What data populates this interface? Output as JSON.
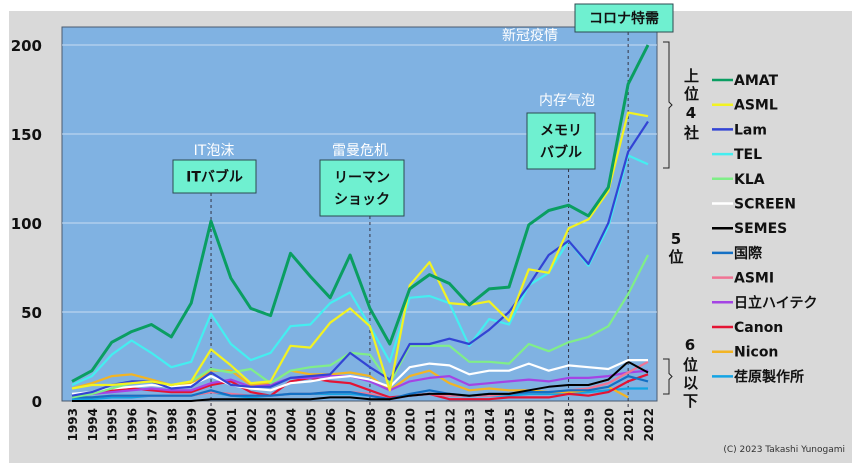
{
  "chart_data": {
    "type": "line",
    "title": "",
    "xlabel": "",
    "ylabel": "",
    "ylim": [
      0,
      200
    ],
    "yticks": [
      "0",
      "50",
      "100",
      "150",
      "200"
    ],
    "grid": true,
    "legend_placement": "right",
    "x": [
      "1993",
      "1994",
      "1995",
      "1996",
      "1997",
      "1998",
      "1999",
      "2000",
      "2001",
      "2002",
      "2003",
      "2004",
      "2005",
      "2006",
      "2007",
      "2008",
      "2009",
      "2010",
      "2011",
      "2012",
      "2013",
      "2014",
      "2015",
      "2016",
      "2017",
      "2018",
      "2019",
      "2020",
      "2021",
      "2022"
    ],
    "series": [
      {
        "name": "AMAT",
        "color": "#0a9e62",
        "width": 3,
        "values": [
          11,
          17,
          33,
          39,
          43,
          36,
          55,
          101,
          69,
          52,
          48,
          83,
          70,
          58,
          82,
          52,
          32,
          63,
          71,
          66,
          54,
          63,
          64,
          99,
          107,
          110,
          104,
          120,
          178,
          200
        ]
      },
      {
        "name": "ASML",
        "color": "#f2f222",
        "width": 2.2,
        "values": [
          7,
          9,
          9,
          10,
          11,
          9,
          11,
          29,
          20,
          10,
          11,
          31,
          30,
          44,
          52,
          42,
          6,
          65,
          78,
          55,
          54,
          56,
          45,
          74,
          72,
          97,
          102,
          118,
          162,
          160
        ]
      },
      {
        "name": "Lam",
        "color": "#3344d4",
        "width": 2.2,
        "values": [
          3,
          5,
          9,
          11,
          11,
          7,
          8,
          16,
          9,
          8,
          8,
          13,
          14,
          15,
          27,
          19,
          12,
          32,
          32,
          35,
          32,
          40,
          50,
          65,
          82,
          90,
          77,
          100,
          140,
          157
        ]
      },
      {
        "name": "TEL",
        "color": "#44eef0",
        "width": 2.2,
        "values": [
          9,
          14,
          26,
          34,
          27,
          19,
          22,
          49,
          32,
          23,
          27,
          42,
          43,
          55,
          61,
          42,
          22,
          58,
          59,
          55,
          31,
          46,
          43,
          65,
          72,
          90,
          76,
          98,
          138,
          133
        ]
      },
      {
        "name": "KLA",
        "color": "#80ee88",
        "width": 2.2,
        "values": [
          2,
          4,
          7,
          10,
          11,
          9,
          11,
          18,
          16,
          18,
          10,
          17,
          19,
          20,
          27,
          26,
          10,
          31,
          31,
          31,
          22,
          22,
          21,
          32,
          28,
          33,
          36,
          42,
          60,
          82
        ]
      },
      {
        "name": "SCREEN",
        "color": "#ffffff",
        "width": 2.2,
        "values": [
          4,
          5,
          7,
          8,
          9,
          8,
          9,
          14,
          9,
          7,
          6,
          10,
          11,
          13,
          14,
          12,
          8,
          19,
          21,
          20,
          15,
          17,
          17,
          21,
          17,
          20,
          19,
          18,
          23,
          23
        ]
      },
      {
        "name": "SEMES",
        "color": "#000000",
        "width": 2,
        "values": [
          0,
          0,
          0,
          0,
          0,
          0,
          0,
          1,
          1,
          1,
          1,
          1,
          1,
          2,
          2,
          1,
          1,
          3,
          4,
          4,
          3,
          4,
          4,
          6,
          8,
          9,
          9,
          12,
          22,
          16
        ]
      },
      {
        "name": "国際",
        "color": "#1470c4",
        "width": 2.2,
        "values": [
          2,
          2,
          3,
          3,
          3,
          3,
          3,
          6,
          3,
          3,
          3,
          4,
          4,
          5,
          5,
          3,
          1,
          4,
          6,
          4,
          3,
          4,
          4,
          5,
          5,
          6,
          6,
          8,
          14,
          11
        ]
      },
      {
        "name": "ASMI",
        "color": "#f07494",
        "width": 2.2,
        "values": [
          2,
          2,
          3,
          3,
          3,
          3,
          3,
          5,
          4,
          3,
          3,
          4,
          4,
          5,
          5,
          4,
          1,
          3,
          4,
          3,
          3,
          3,
          4,
          5,
          5,
          6,
          7,
          10,
          16,
          22
        ]
      },
      {
        "name": "日立ハイテク",
        "color": "#a444e4",
        "width": 2.2,
        "values": [
          3,
          4,
          5,
          6,
          7,
          6,
          6,
          10,
          12,
          8,
          9,
          13,
          13,
          14,
          14,
          11,
          6,
          11,
          13,
          14,
          9,
          10,
          11,
          12,
          11,
          13,
          13,
          14,
          16,
          17
        ]
      },
      {
        "name": "Canon",
        "color": "#e41434",
        "width": 2.2,
        "values": [
          3,
          4,
          6,
          7,
          6,
          5,
          5,
          9,
          11,
          5,
          3,
          11,
          13,
          11,
          10,
          6,
          2,
          3,
          4,
          1,
          1,
          1,
          2,
          2,
          2,
          4,
          3,
          5,
          11,
          15
        ]
      },
      {
        "name": "Nicon",
        "color": "#f2b424",
        "width": 2.2,
        "values": [
          7,
          10,
          14,
          15,
          12,
          9,
          10,
          17,
          17,
          9,
          10,
          17,
          15,
          15,
          16,
          14,
          6,
          14,
          17,
          10,
          6,
          7,
          6,
          6,
          5,
          5,
          6,
          8,
          2,
          null
        ]
      },
      {
        "name": "荏原製作所",
        "color": "#14a4e4",
        "width": 2.2,
        "values": [
          1,
          1,
          2,
          2,
          3,
          3,
          3,
          5,
          3,
          2,
          3,
          4,
          4,
          4,
          4,
          3,
          1,
          3,
          4,
          3,
          3,
          3,
          3,
          4,
          4,
          4,
          5,
          6,
          7,
          7
        ]
      }
    ],
    "annotations": [
      {
        "year": "2000",
        "box": "ITバブル",
        "label": "IT泡沫"
      },
      {
        "year": "2008",
        "box": "リーマンショック",
        "box_lines": [
          "リーマン",
          "ショック"
        ],
        "label": "雷曼危机"
      },
      {
        "year": "2018",
        "box": "メモリバブル",
        "box_lines": [
          "メモリ",
          "バブル"
        ],
        "label": "内存气泡"
      },
      {
        "year": "2021",
        "box": "コロナ特需",
        "box_lines": [
          "コロナ特需"
        ],
        "label": "新冠疫情"
      }
    ],
    "groups": [
      {
        "label": "上位4社",
        "chars": [
          "上",
          "位",
          "4",
          "社"
        ]
      },
      {
        "label": "5位",
        "chars": [
          "5",
          "位"
        ]
      },
      {
        "label": "6位以下",
        "chars": [
          "6",
          "位",
          "以",
          "下"
        ]
      }
    ]
  },
  "credit": "(C) 2023 Takashi Yunogami"
}
